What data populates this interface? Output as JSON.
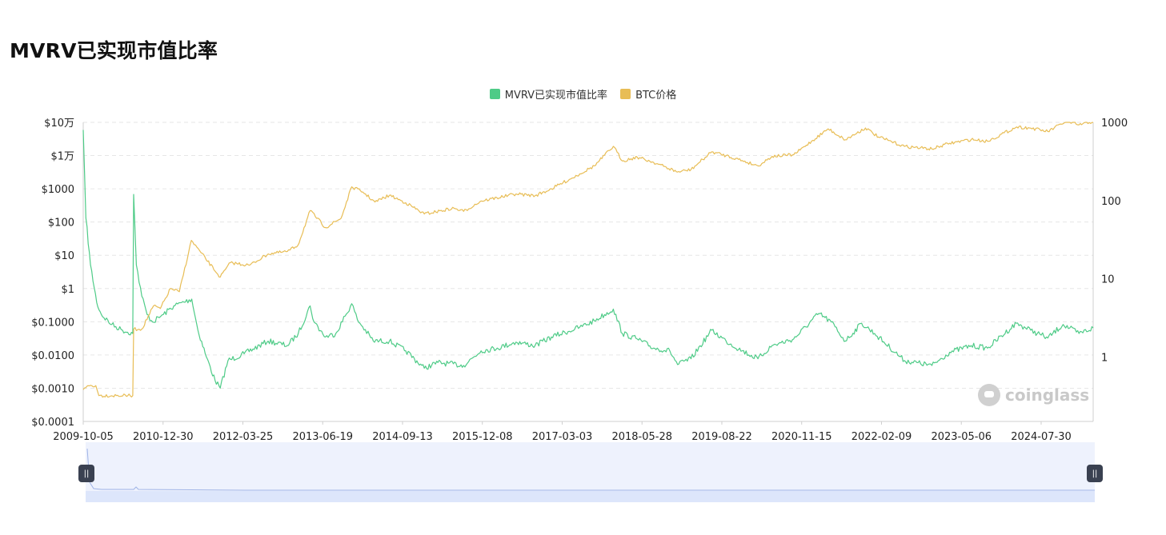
{
  "page": {
    "title": "MVRV已实现市值比率"
  },
  "legend": [
    {
      "label": "MVRV已实现市值比率",
      "color": "#4ecb87"
    },
    {
      "label": "BTC价格",
      "color": "#e8bd55"
    }
  ],
  "watermark": "coinglass",
  "zoom": {
    "handle_left_icon": "grip-icon",
    "handle_right_icon": "grip-icon",
    "start": 0,
    "end": 100
  },
  "chart_data": {
    "type": "line",
    "title": "MVRV已实现市值比率",
    "grid": true,
    "legend_position": "top-center",
    "x_axis": {
      "type": "date",
      "range": [
        "2009-10-05",
        "2025-05-20"
      ],
      "tick_labels": [
        "2009-10-05",
        "2010-12-30",
        "2012-03-25",
        "2013-06-19",
        "2014-09-13",
        "2015-12-08",
        "2017-03-03",
        "2018-05-28",
        "2019-08-22",
        "2020-11-15",
        "2022-02-09",
        "2023-05-06",
        "2024-07-30"
      ]
    },
    "y_axis_left": {
      "scale": "log",
      "range": [
        0.0001,
        100000
      ],
      "tick_values": [
        0.0001,
        0.001,
        0.01,
        0.1,
        1,
        10,
        100,
        1000,
        10000,
        100000
      ],
      "tick_labels": [
        "$0.0001",
        "$0.0010",
        "$0.0100",
        "$0.1000",
        "$1",
        "$10",
        "$100",
        "$1000",
        "$1万",
        "$10万"
      ]
    },
    "y_axis_right": {
      "scale": "log",
      "range": [
        0.15,
        1000
      ],
      "tick_values": [
        1,
        10,
        100,
        1000
      ],
      "tick_labels": [
        "1",
        "10",
        "100",
        "1000"
      ]
    },
    "series": [
      {
        "name": "MVRV已实现市值比率",
        "axis": "right",
        "color": "#4ecb87",
        "points": [
          [
            "2009-10-05",
            800
          ],
          [
            "2009-10-20",
            60
          ],
          [
            "2009-11-15",
            15
          ],
          [
            "2009-12-20",
            5
          ],
          [
            "2010-01-15",
            3.5
          ],
          [
            "2010-03-15",
            2.6
          ],
          [
            "2010-05-15",
            2.2
          ],
          [
            "2010-07-12",
            2.0
          ],
          [
            "2010-07-17",
            120
          ],
          [
            "2010-08-01",
            15
          ],
          [
            "2010-09-01",
            6
          ],
          [
            "2010-10-01",
            3.5
          ],
          [
            "2010-11-01",
            2.8
          ],
          [
            "2011-01-01",
            3.5
          ],
          [
            "2011-03-01",
            4.5
          ],
          [
            "2011-06-10",
            5.5
          ],
          [
            "2011-07-15",
            2.2
          ],
          [
            "2011-09-01",
            1.0
          ],
          [
            "2011-10-20",
            0.5
          ],
          [
            "2011-11-18",
            0.4
          ],
          [
            "2012-01-01",
            0.9
          ],
          [
            "2012-04-01",
            1.1
          ],
          [
            "2012-08-15",
            1.6
          ],
          [
            "2012-12-01",
            1.4
          ],
          [
            "2013-02-01",
            2.0
          ],
          [
            "2013-04-09",
            4.5
          ],
          [
            "2013-05-01",
            2.8
          ],
          [
            "2013-07-05",
            1.8
          ],
          [
            "2013-09-01",
            2.0
          ],
          [
            "2013-11-30",
            4.8
          ],
          [
            "2014-01-01",
            3.0
          ],
          [
            "2014-04-01",
            1.6
          ],
          [
            "2014-07-01",
            1.6
          ],
          [
            "2014-10-01",
            1.2
          ],
          [
            "2015-01-14",
            0.72
          ],
          [
            "2015-04-01",
            0.85
          ],
          [
            "2015-08-24",
            0.78
          ],
          [
            "2015-12-01",
            1.2
          ],
          [
            "2016-03-01",
            1.3
          ],
          [
            "2016-06-15",
            1.55
          ],
          [
            "2016-10-01",
            1.4
          ],
          [
            "2017-01-01",
            1.8
          ],
          [
            "2017-06-10",
            2.4
          ],
          [
            "2017-09-01",
            2.9
          ],
          [
            "2017-12-17",
            4.1
          ],
          [
            "2018-02-06",
            2.0
          ],
          [
            "2018-05-01",
            1.7
          ],
          [
            "2018-08-01",
            1.3
          ],
          [
            "2018-11-01",
            1.2
          ],
          [
            "2018-12-15",
            0.8
          ],
          [
            "2019-03-01",
            0.95
          ],
          [
            "2019-06-26",
            2.2
          ],
          [
            "2019-09-15",
            1.6
          ],
          [
            "2019-12-15",
            1.2
          ],
          [
            "2020-03-13",
            0.95
          ],
          [
            "2020-06-01",
            1.4
          ],
          [
            "2020-10-01",
            1.7
          ],
          [
            "2021-02-20",
            3.6
          ],
          [
            "2021-05-01",
            2.8
          ],
          [
            "2021-07-20",
            1.6
          ],
          [
            "2021-10-20",
            2.7
          ],
          [
            "2022-01-01",
            2.0
          ],
          [
            "2022-06-18",
            0.9
          ],
          [
            "2022-11-21",
            0.78
          ],
          [
            "2023-03-01",
            1.15
          ],
          [
            "2023-07-01",
            1.4
          ],
          [
            "2023-10-01",
            1.3
          ],
          [
            "2024-03-12",
            2.7
          ],
          [
            "2024-06-01",
            2.2
          ],
          [
            "2024-09-06",
            1.75
          ],
          [
            "2024-12-01",
            2.6
          ],
          [
            "2025-03-01",
            2.0
          ],
          [
            "2025-05-20",
            2.35
          ]
        ]
      },
      {
        "name": "BTC价格",
        "axis": "left",
        "color": "#e8bd55",
        "points": [
          [
            "2009-10-05",
            0.0009
          ],
          [
            "2009-11-01",
            0.0012
          ],
          [
            "2009-12-15",
            0.0012
          ],
          [
            "2010-01-01",
            0.0006
          ],
          [
            "2010-07-12",
            0.0006
          ],
          [
            "2010-07-17",
            0.06
          ],
          [
            "2010-09-01",
            0.06
          ],
          [
            "2010-11-06",
            0.3
          ],
          [
            "2010-12-15",
            0.25
          ],
          [
            "2011-02-10",
            1.0
          ],
          [
            "2011-04-01",
            0.8
          ],
          [
            "2011-06-08",
            28
          ],
          [
            "2011-08-01",
            12
          ],
          [
            "2011-11-18",
            2.2
          ],
          [
            "2012-01-15",
            6
          ],
          [
            "2012-05-01",
            5
          ],
          [
            "2012-08-15",
            11
          ],
          [
            "2012-12-01",
            13
          ],
          [
            "2013-01-30",
            20
          ],
          [
            "2013-04-09",
            220
          ],
          [
            "2013-07-05",
            68
          ],
          [
            "2013-10-01",
            130
          ],
          [
            "2013-11-30",
            1150
          ],
          [
            "2014-02-01",
            800
          ],
          [
            "2014-04-10",
            400
          ],
          [
            "2014-07-01",
            640
          ],
          [
            "2014-10-01",
            380
          ],
          [
            "2015-01-14",
            175
          ],
          [
            "2015-07-01",
            260
          ],
          [
            "2015-08-24",
            210
          ],
          [
            "2015-12-01",
            430
          ],
          [
            "2016-06-15",
            700
          ],
          [
            "2016-10-01",
            620
          ],
          [
            "2017-01-01",
            1000
          ],
          [
            "2017-06-10",
            2800
          ],
          [
            "2017-09-01",
            4900
          ],
          [
            "2017-12-17",
            19000
          ],
          [
            "2018-02-06",
            6900
          ],
          [
            "2018-05-01",
            9000
          ],
          [
            "2018-08-01",
            6300
          ],
          [
            "2018-12-15",
            3200
          ],
          [
            "2019-03-01",
            3800
          ],
          [
            "2019-06-26",
            13000
          ],
          [
            "2019-09-15",
            10000
          ],
          [
            "2019-12-15",
            7100
          ],
          [
            "2020-03-13",
            4900
          ],
          [
            "2020-06-01",
            9500
          ],
          [
            "2020-10-01",
            10600
          ],
          [
            "2021-04-14",
            64000
          ],
          [
            "2021-07-20",
            29800
          ],
          [
            "2021-11-10",
            68000
          ],
          [
            "2022-01-24",
            36000
          ],
          [
            "2022-06-18",
            19000
          ],
          [
            "2022-11-21",
            15800
          ],
          [
            "2023-03-01",
            23500
          ],
          [
            "2023-07-01",
            30500
          ],
          [
            "2023-10-01",
            27000
          ],
          [
            "2024-03-14",
            73000
          ],
          [
            "2024-06-01",
            67000
          ],
          [
            "2024-09-06",
            53000
          ],
          [
            "2024-12-17",
            106000
          ],
          [
            "2025-03-01",
            84000
          ],
          [
            "2025-05-20",
            106000
          ]
        ]
      }
    ]
  }
}
